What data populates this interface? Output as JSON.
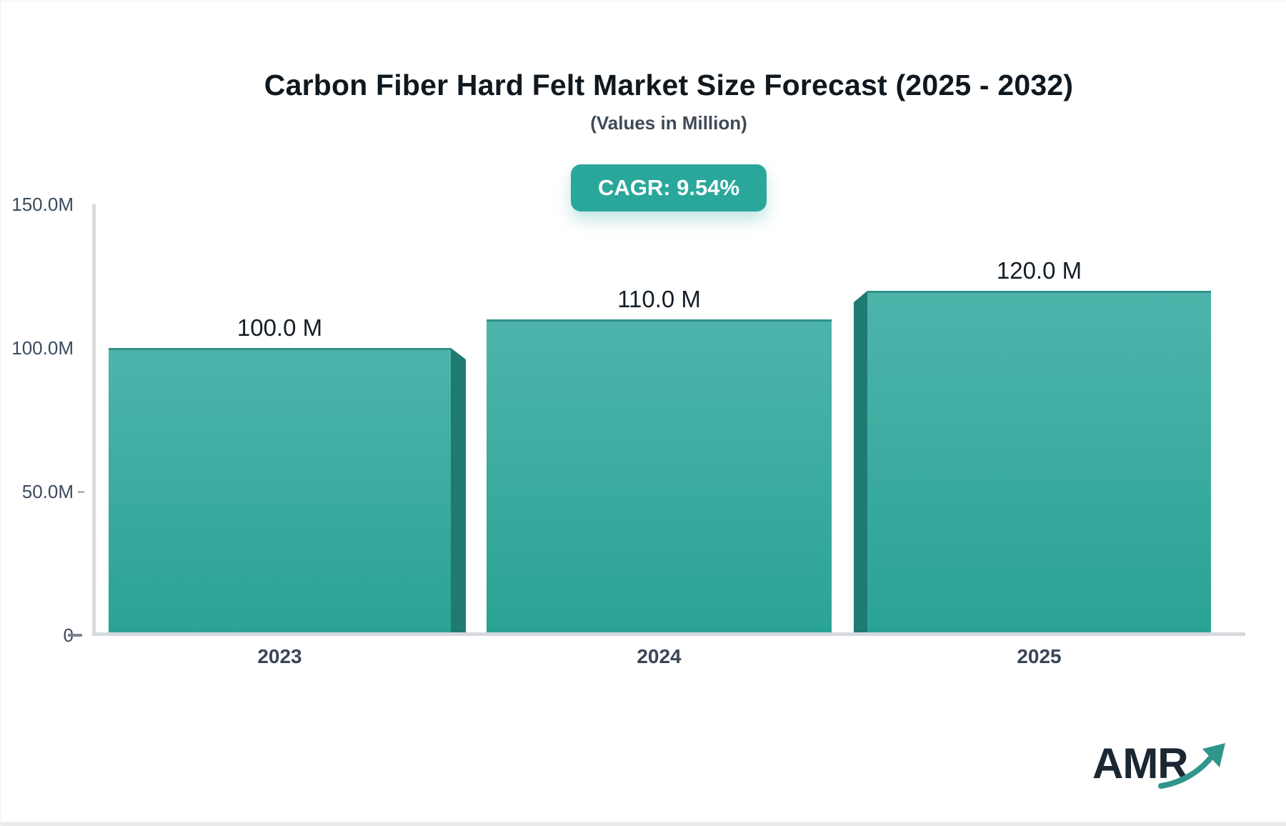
{
  "header": {
    "title": "Carbon Fiber Hard Felt Market Size Forecast (2025 - 2032)",
    "subtitle": "(Values in Million)",
    "cagr_badge": "CAGR: 9.54%"
  },
  "chart_data": {
    "type": "bar",
    "title": "Carbon Fiber Hard Felt Market Size Forecast (2025 - 2032)",
    "subtitle": "(Values in Million)",
    "cagr_percent": "9.54%",
    "unit": "Million",
    "categories": [
      "2023",
      "2024",
      "2025"
    ],
    "values": [
      100.0,
      110.0,
      120.0
    ],
    "bar_labels": [
      "100.0 M",
      "110.0 M",
      "120.0 M"
    ],
    "xlabel": "",
    "ylabel": "",
    "ylim": [
      0,
      150
    ],
    "yticks": [
      {
        "value": 0,
        "label": "0"
      },
      {
        "value": 50,
        "label": "50.0M"
      },
      {
        "value": 100,
        "label": "100.0M"
      },
      {
        "value": 150,
        "label": "150.0M"
      }
    ],
    "grid": false,
    "legend": false
  },
  "colors": {
    "accent_teal": "#2aa79b",
    "bar_gradient_top": "#4eb4ab",
    "bar_gradient_bottom": "#2aa394",
    "bar_side_shadow": "#1f7a72",
    "bar_top_border": "#2e9388",
    "axis_line": "#d6d9dd",
    "title_text": "#10181f",
    "axis_text": "#3c4b5d"
  },
  "logo": {
    "text": "AMR"
  }
}
